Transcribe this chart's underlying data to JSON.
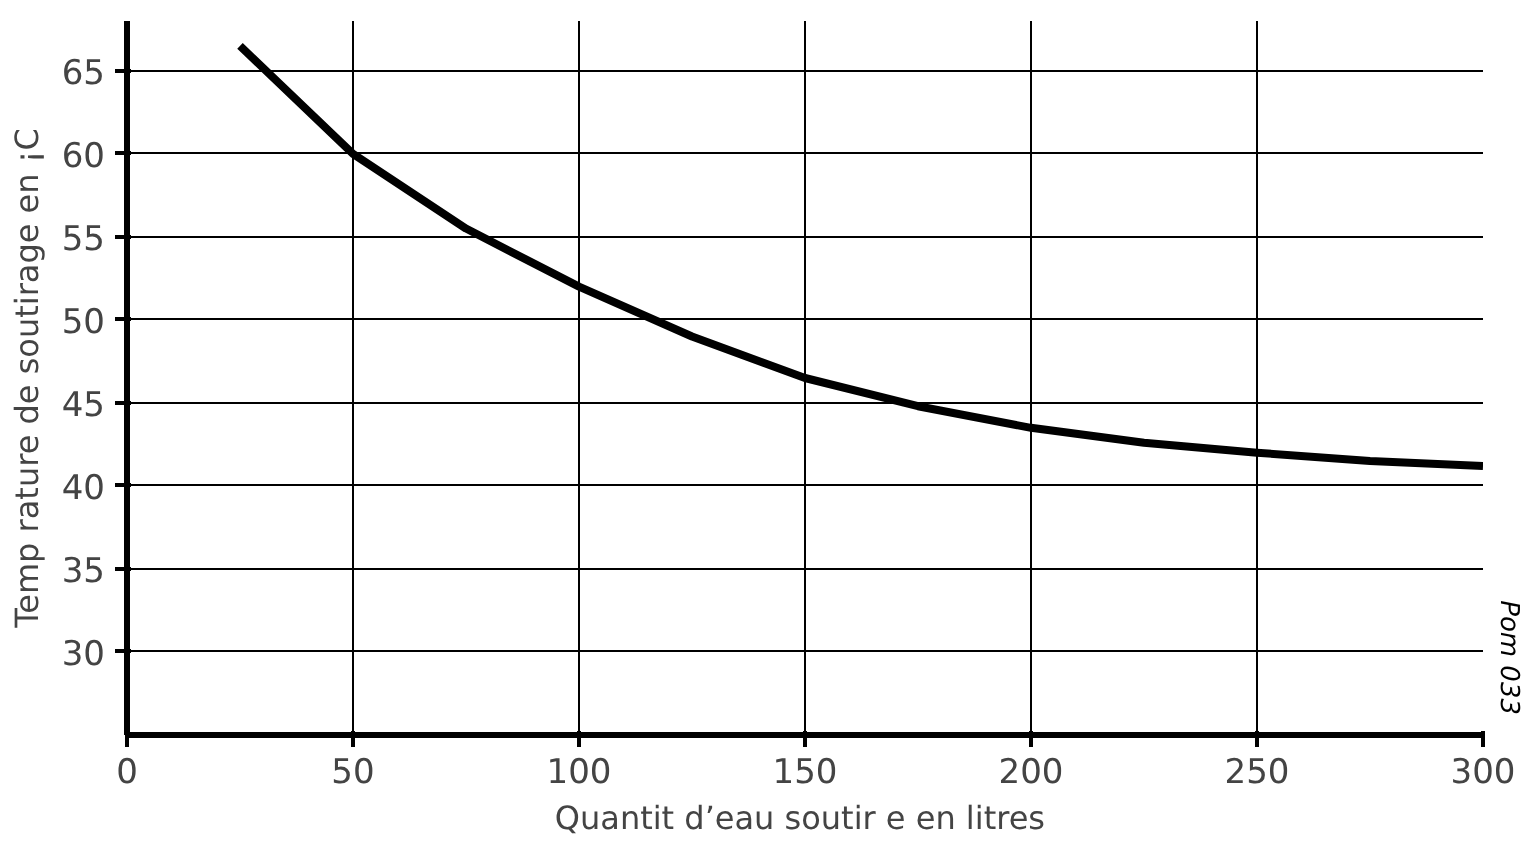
{
  "chart_data": {
    "type": "line",
    "xlabel": "Quantit  d’eau soutir e en litres",
    "ylabel": "Temp rature de soutirage en ¡C",
    "annotations": [
      "Pom 033"
    ],
    "x": [
      25,
      50,
      75,
      100,
      125,
      150,
      175,
      200,
      225,
      250,
      275,
      300
    ],
    "series": [
      {
        "color": "#000000",
        "values": [
          66.5,
          60,
          55.5,
          52,
          49,
          46.5,
          44.8,
          43.5,
          42.6,
          42,
          41.5,
          41.2
        ]
      }
    ],
    "xlim": [
      0,
      300
    ],
    "ylim": [
      25,
      68
    ],
    "xticks": [
      0,
      50,
      100,
      150,
      200,
      250,
      300
    ],
    "yticks": [
      30,
      35,
      40,
      45,
      50,
      55,
      60,
      65
    ],
    "grid": true,
    "marker": "none",
    "line_style": "solid"
  }
}
